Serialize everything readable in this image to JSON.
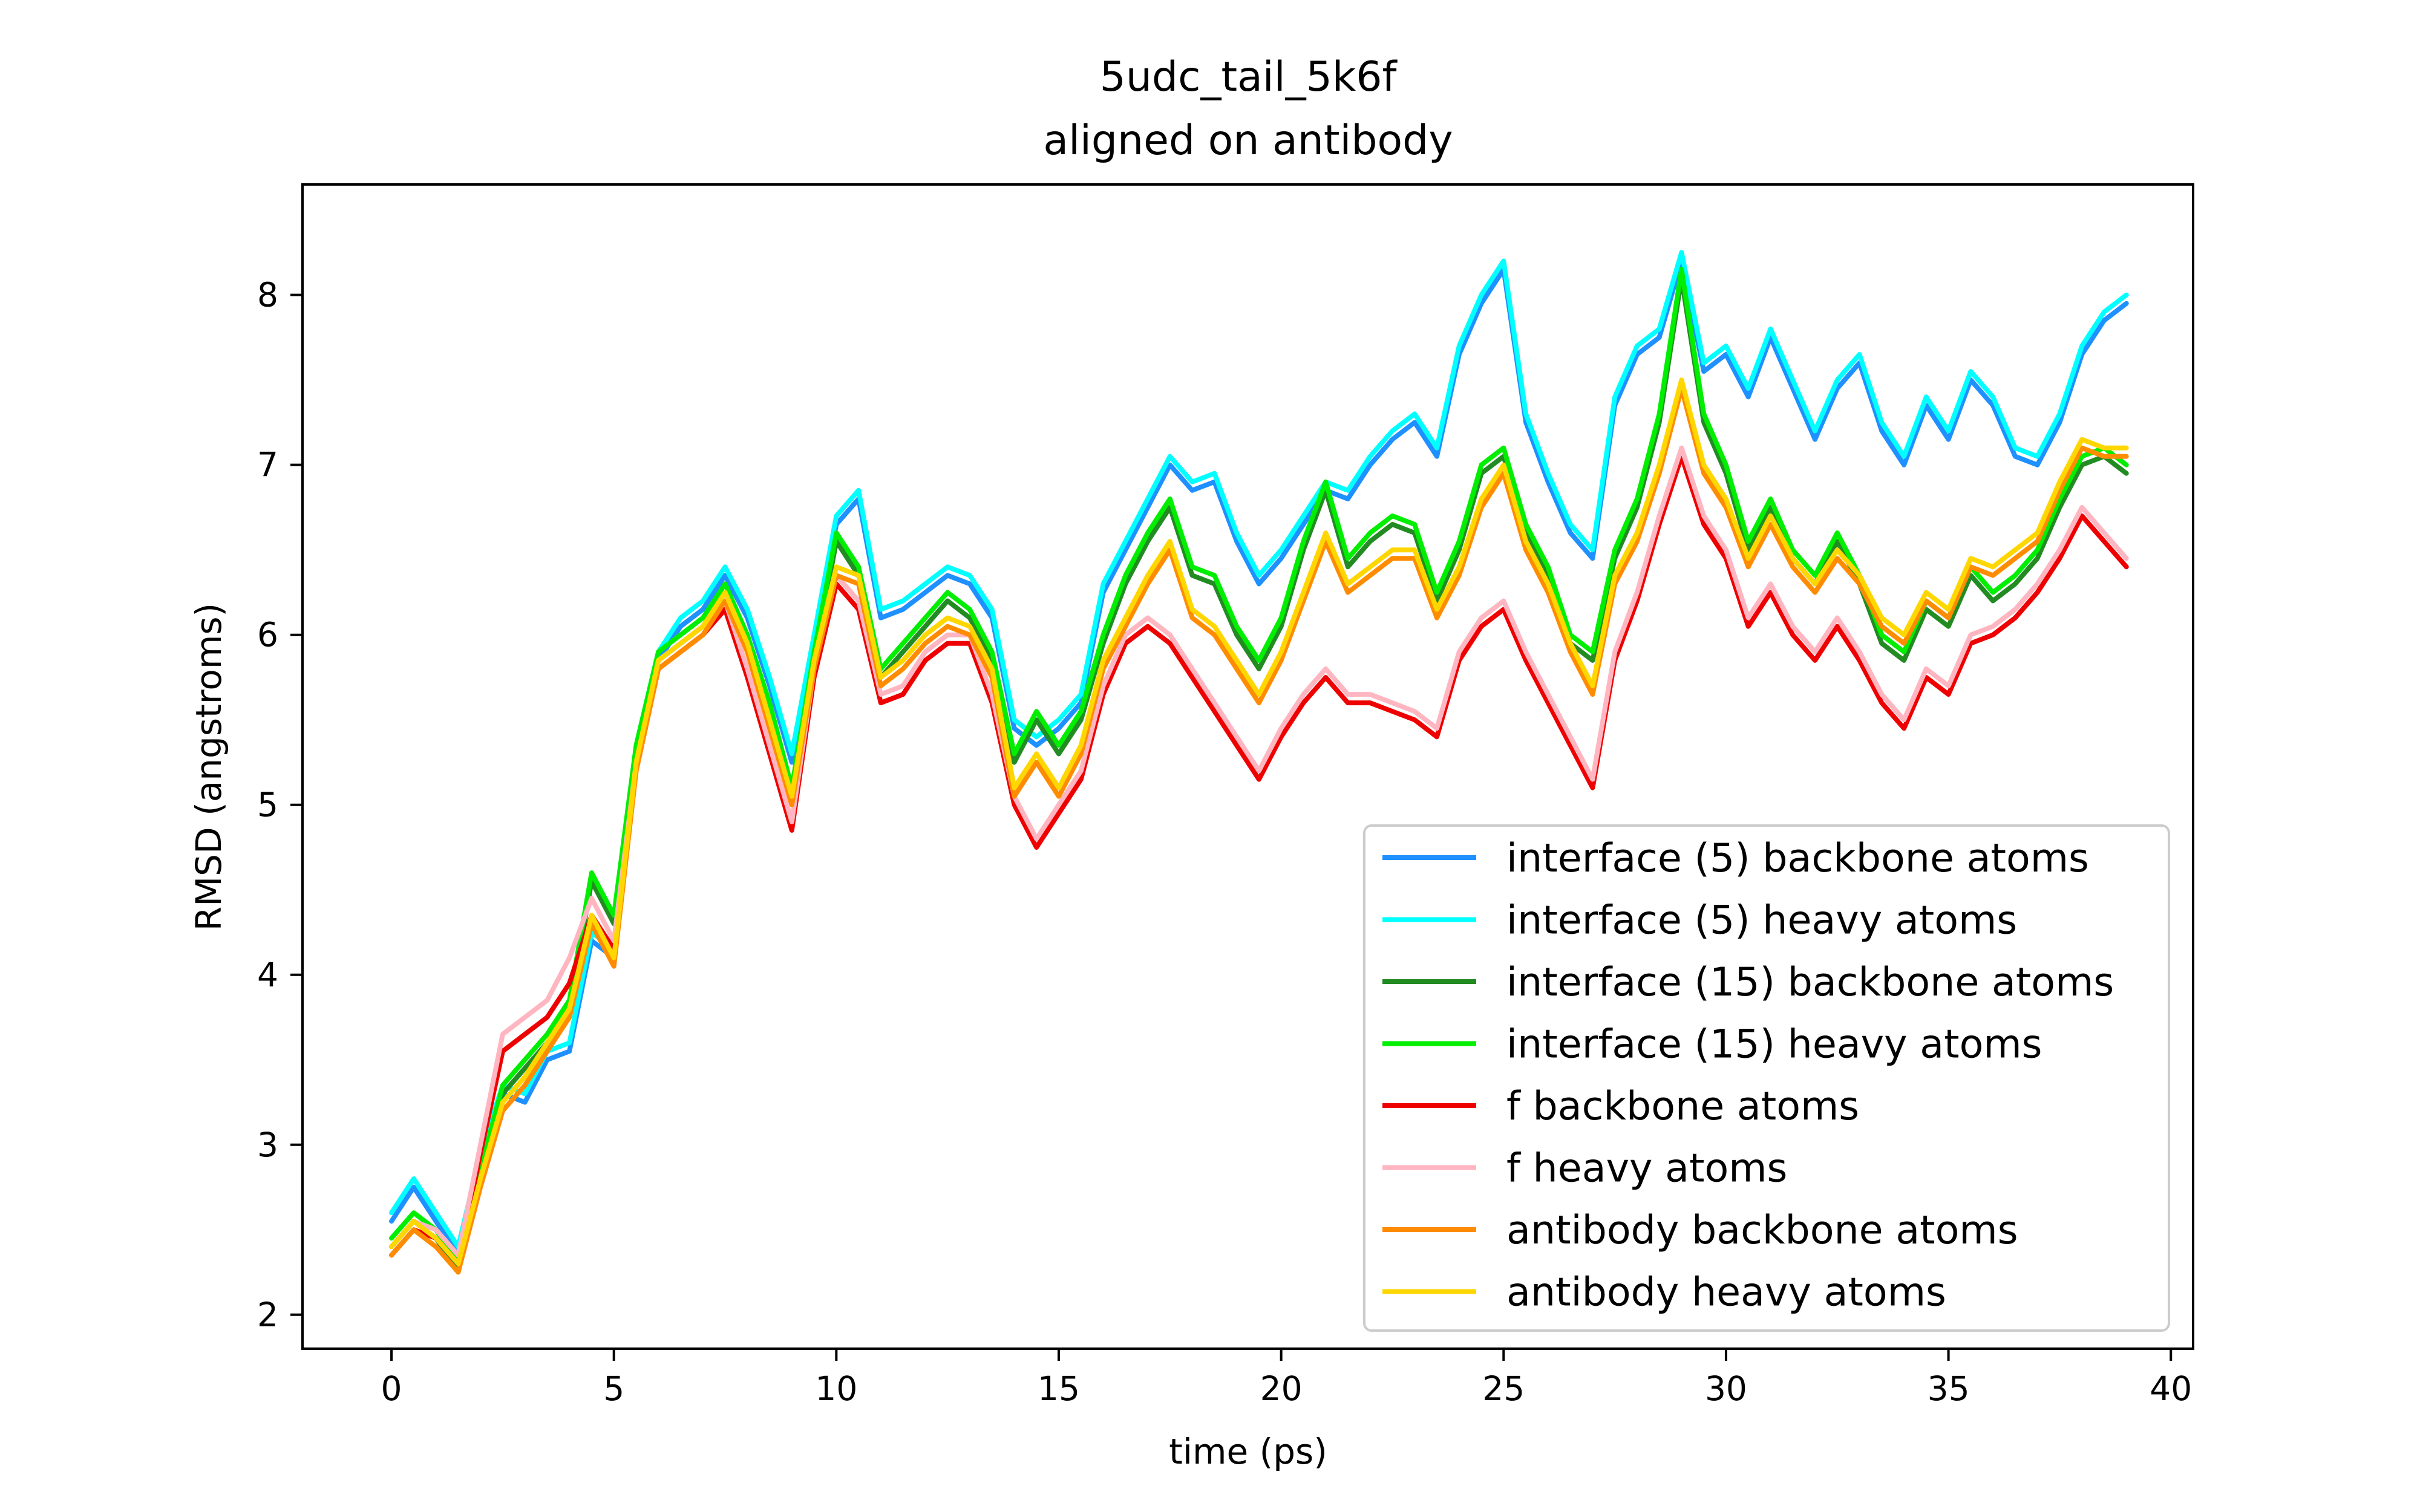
{
  "chart_data": {
    "type": "line",
    "title": "5udc_tail_5k6f",
    "subtitle": "aligned on antibody",
    "xlabel": "time (ps)",
    "ylabel": "RMSD (angstroms)",
    "xlim": [
      -2,
      40.5
    ],
    "ylim": [
      1.8,
      8.65
    ],
    "x_ticks": [
      0,
      5,
      10,
      15,
      20,
      25,
      30,
      35,
      40
    ],
    "y_ticks": [
      2,
      3,
      4,
      5,
      6,
      7,
      8
    ],
    "grid": false,
    "legend_position": "lower-right",
    "x": [
      0,
      0.5,
      1,
      1.5,
      2,
      2.5,
      3,
      3.5,
      4,
      4.5,
      5,
      5.5,
      6,
      6.5,
      7,
      7.5,
      8,
      8.5,
      9,
      9.5,
      10,
      10.5,
      11,
      11.5,
      12,
      12.5,
      13,
      13.5,
      14,
      14.5,
      15,
      15.5,
      16,
      16.5,
      17,
      17.5,
      18,
      18.5,
      19,
      19.5,
      20,
      20.5,
      21,
      21.5,
      22,
      22.5,
      23,
      23.5,
      24,
      24.5,
      25,
      25.5,
      26,
      26.5,
      27,
      27.5,
      28,
      28.5,
      29,
      29.5,
      30,
      30.5,
      31,
      31.5,
      32,
      32.5,
      33,
      33.5,
      34,
      34.5,
      35,
      35.5,
      36,
      36.5,
      37,
      37.5,
      38,
      38.5,
      39
    ],
    "series": [
      {
        "name": "interface (5) backbone atoms",
        "color": "#1e90ff",
        "values": [
          2.55,
          2.75,
          2.55,
          2.35,
          2.9,
          3.3,
          3.25,
          3.5,
          3.55,
          4.2,
          4.1,
          5.3,
          5.85,
          6.05,
          6.15,
          6.35,
          6.1,
          5.7,
          5.25,
          5.95,
          6.65,
          6.8,
          6.1,
          6.15,
          6.25,
          6.35,
          6.3,
          6.1,
          5.45,
          5.35,
          5.45,
          5.6,
          6.25,
          6.5,
          6.75,
          7.0,
          6.85,
          6.9,
          6.55,
          6.3,
          6.45,
          6.65,
          6.85,
          6.8,
          7.0,
          7.15,
          7.25,
          7.05,
          7.65,
          7.95,
          8.15,
          7.25,
          6.9,
          6.6,
          6.45,
          7.35,
          7.65,
          7.75,
          8.2,
          7.55,
          7.65,
          7.4,
          7.75,
          7.45,
          7.15,
          7.45,
          7.6,
          7.2,
          7.0,
          7.35,
          7.15,
          7.5,
          7.35,
          7.05,
          7.0,
          7.25,
          7.65,
          7.85,
          7.95
        ]
      },
      {
        "name": "interface (5) heavy atoms",
        "color": "#00ffff",
        "values": [
          2.6,
          2.8,
          2.6,
          2.4,
          2.95,
          3.35,
          3.3,
          3.55,
          3.6,
          4.25,
          4.15,
          5.35,
          5.9,
          6.1,
          6.2,
          6.4,
          6.15,
          5.75,
          5.3,
          6.0,
          6.7,
          6.85,
          6.15,
          6.2,
          6.3,
          6.4,
          6.35,
          6.15,
          5.5,
          5.4,
          5.5,
          5.65,
          6.3,
          6.55,
          6.8,
          7.05,
          6.9,
          6.95,
          6.6,
          6.35,
          6.5,
          6.7,
          6.9,
          6.85,
          7.05,
          7.2,
          7.3,
          7.1,
          7.7,
          8.0,
          8.2,
          7.3,
          6.95,
          6.65,
          6.5,
          7.4,
          7.7,
          7.8,
          8.25,
          7.6,
          7.7,
          7.45,
          7.8,
          7.5,
          7.2,
          7.5,
          7.65,
          7.25,
          7.05,
          7.4,
          7.2,
          7.55,
          7.4,
          7.1,
          7.05,
          7.3,
          7.7,
          7.9,
          8.0
        ]
      },
      {
        "name": "interface (15) backbone atoms",
        "color": "#228b22",
        "values": [
          2.4,
          2.55,
          2.45,
          2.25,
          2.8,
          3.3,
          3.45,
          3.6,
          3.8,
          4.55,
          4.3,
          5.3,
          5.85,
          5.95,
          6.05,
          6.25,
          5.95,
          5.55,
          5.05,
          5.85,
          6.55,
          6.35,
          5.75,
          5.9,
          6.05,
          6.2,
          6.1,
          5.85,
          5.25,
          5.5,
          5.3,
          5.5,
          5.95,
          6.3,
          6.55,
          6.75,
          6.35,
          6.3,
          6.0,
          5.8,
          6.05,
          6.5,
          6.85,
          6.4,
          6.55,
          6.65,
          6.6,
          6.2,
          6.5,
          6.95,
          7.05,
          6.6,
          6.35,
          5.95,
          5.85,
          6.45,
          6.75,
          7.25,
          8.1,
          7.25,
          6.95,
          6.5,
          6.75,
          6.45,
          6.3,
          6.55,
          6.3,
          5.95,
          5.85,
          6.15,
          6.05,
          6.35,
          6.2,
          6.3,
          6.45,
          6.75,
          7.0,
          7.05,
          6.95
        ]
      },
      {
        "name": "interface (15) heavy atoms",
        "color": "#00ee00",
        "values": [
          2.45,
          2.6,
          2.5,
          2.3,
          2.85,
          3.35,
          3.5,
          3.65,
          3.85,
          4.6,
          4.35,
          5.35,
          5.9,
          6.0,
          6.1,
          6.3,
          6.0,
          5.6,
          5.1,
          5.9,
          6.6,
          6.4,
          5.8,
          5.95,
          6.1,
          6.25,
          6.15,
          5.9,
          5.3,
          5.55,
          5.35,
          5.55,
          6.0,
          6.35,
          6.6,
          6.8,
          6.4,
          6.35,
          6.05,
          5.85,
          6.1,
          6.55,
          6.9,
          6.45,
          6.6,
          6.7,
          6.65,
          6.25,
          6.55,
          7.0,
          7.1,
          6.65,
          6.4,
          6.0,
          5.9,
          6.5,
          6.8,
          7.3,
          8.15,
          7.3,
          7.0,
          6.55,
          6.8,
          6.5,
          6.35,
          6.6,
          6.35,
          6.0,
          5.9,
          6.2,
          6.1,
          6.4,
          6.25,
          6.35,
          6.5,
          6.8,
          7.05,
          7.1,
          7.0
        ]
      },
      {
        "name": "f backbone atoms",
        "color": "#ee0000",
        "values": [
          2.35,
          2.5,
          2.45,
          2.3,
          2.95,
          3.55,
          3.65,
          3.75,
          3.95,
          4.35,
          4.15,
          5.2,
          5.8,
          5.9,
          6.0,
          6.15,
          5.75,
          5.3,
          4.85,
          5.75,
          6.3,
          6.15,
          5.6,
          5.65,
          5.85,
          5.95,
          5.95,
          5.6,
          5.0,
          4.75,
          4.95,
          5.15,
          5.65,
          5.95,
          6.05,
          5.95,
          5.75,
          5.55,
          5.35,
          5.15,
          5.4,
          5.6,
          5.75,
          5.6,
          5.6,
          5.55,
          5.5,
          5.4,
          5.85,
          6.05,
          6.15,
          5.85,
          5.6,
          5.35,
          5.1,
          5.85,
          6.2,
          6.65,
          7.05,
          6.65,
          6.45,
          6.05,
          6.25,
          6.0,
          5.85,
          6.05,
          5.85,
          5.6,
          5.45,
          5.75,
          5.65,
          5.95,
          6.0,
          6.1,
          6.25,
          6.45,
          6.7,
          6.55,
          6.4
        ]
      },
      {
        "name": "f heavy atoms",
        "color": "#ffb6c1",
        "values": [
          2.4,
          2.55,
          2.5,
          2.35,
          3.0,
          3.65,
          3.75,
          3.85,
          4.1,
          4.45,
          4.2,
          5.25,
          5.85,
          5.95,
          6.05,
          6.2,
          5.8,
          5.35,
          4.9,
          5.8,
          6.35,
          6.2,
          5.65,
          5.7,
          5.9,
          6.0,
          6.0,
          5.65,
          5.05,
          4.8,
          5.0,
          5.2,
          5.7,
          6.0,
          6.1,
          6.0,
          5.8,
          5.6,
          5.4,
          5.2,
          5.45,
          5.65,
          5.8,
          5.65,
          5.65,
          5.6,
          5.55,
          5.45,
          5.9,
          6.1,
          6.2,
          5.9,
          5.65,
          5.4,
          5.15,
          5.9,
          6.25,
          6.7,
          7.1,
          6.7,
          6.5,
          6.1,
          6.3,
          6.05,
          5.9,
          6.1,
          5.9,
          5.65,
          5.5,
          5.8,
          5.7,
          6.0,
          6.05,
          6.15,
          6.3,
          6.5,
          6.75,
          6.6,
          6.45
        ]
      },
      {
        "name": "antibody backbone atoms",
        "color": "#ff8c00",
        "values": [
          2.35,
          2.5,
          2.4,
          2.25,
          2.75,
          3.2,
          3.35,
          3.55,
          3.75,
          4.3,
          4.05,
          5.2,
          5.8,
          5.9,
          6.0,
          6.2,
          5.9,
          5.45,
          5.0,
          5.8,
          6.35,
          6.3,
          5.7,
          5.8,
          5.95,
          6.05,
          6.0,
          5.75,
          5.05,
          5.25,
          5.05,
          5.3,
          5.8,
          6.05,
          6.3,
          6.5,
          6.1,
          6.0,
          5.8,
          5.6,
          5.85,
          6.2,
          6.55,
          6.25,
          6.35,
          6.45,
          6.45,
          6.1,
          6.35,
          6.75,
          6.95,
          6.5,
          6.25,
          5.9,
          5.65,
          6.3,
          6.55,
          6.95,
          7.45,
          6.95,
          6.75,
          6.4,
          6.65,
          6.4,
          6.25,
          6.45,
          6.3,
          6.05,
          5.95,
          6.2,
          6.1,
          6.4,
          6.35,
          6.45,
          6.55,
          6.85,
          7.1,
          7.05,
          7.05
        ]
      },
      {
        "name": "antibody heavy atoms",
        "color": "#ffd700",
        "values": [
          2.4,
          2.55,
          2.45,
          2.3,
          2.8,
          3.25,
          3.4,
          3.6,
          3.8,
          4.35,
          4.1,
          5.25,
          5.85,
          5.95,
          6.05,
          6.25,
          5.95,
          5.5,
          5.05,
          5.85,
          6.4,
          6.35,
          5.75,
          5.85,
          6.0,
          6.1,
          6.05,
          5.8,
          5.1,
          5.3,
          5.1,
          5.35,
          5.85,
          6.1,
          6.35,
          6.55,
          6.15,
          6.05,
          5.85,
          5.65,
          5.9,
          6.25,
          6.6,
          6.3,
          6.4,
          6.5,
          6.5,
          6.15,
          6.4,
          6.8,
          7.0,
          6.55,
          6.3,
          5.95,
          5.7,
          6.35,
          6.6,
          7.0,
          7.5,
          7.0,
          6.8,
          6.45,
          6.7,
          6.45,
          6.3,
          6.5,
          6.35,
          6.1,
          6.0,
          6.25,
          6.15,
          6.45,
          6.4,
          6.5,
          6.6,
          6.9,
          7.15,
          7.1,
          7.1
        ]
      }
    ]
  }
}
